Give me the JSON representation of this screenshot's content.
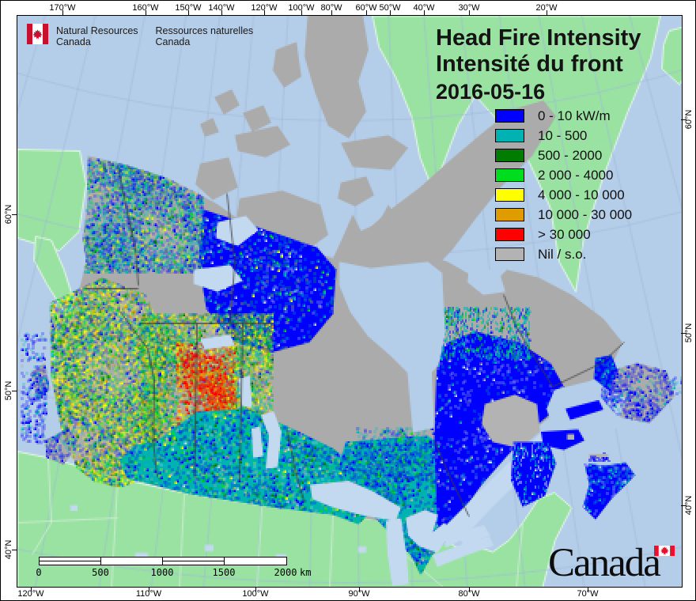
{
  "agency": {
    "flag_icon": "canadian-flag",
    "en": [
      "Natural Resources",
      "Canada"
    ],
    "fr": [
      "Ressources naturelles",
      "Canada"
    ]
  },
  "title": {
    "line1": "Head Fire Intensity",
    "line2": "Intensité du front",
    "date": "2016-05-16"
  },
  "legend": {
    "items": [
      {
        "label": "0 - 10 kW/m",
        "color": "#0000ff"
      },
      {
        "label": "10 - 500",
        "color": "#00b2b2"
      },
      {
        "label": "500 - 2000",
        "color": "#007d00"
      },
      {
        "label": "2 000 - 4000",
        "color": "#00dd1e"
      },
      {
        "label": "4 000 - 10 000",
        "color": "#ffff00"
      },
      {
        "label": "10 000 - 30 000",
        "color": "#e09b00"
      },
      {
        "label": "> 30 000",
        "color": "#ff0000"
      },
      {
        "label": "Nil / s.o.",
        "color": "#b3b3b3"
      }
    ]
  },
  "axes": {
    "top": [
      "170°W",
      "160°W",
      "150°W",
      "140°W",
      "120°W",
      "100°W",
      "80°W",
      "60°W",
      "50°W",
      "40°W",
      "30°W",
      "20°W"
    ],
    "bottom": [
      "120°W",
      "110°W",
      "100°W",
      "90°W",
      "80°W",
      "70°W"
    ],
    "left": [
      "60°N",
      "50°N",
      "40°N"
    ],
    "right": [
      "60°N",
      "50°N",
      "40°N"
    ]
  },
  "scale_bar": {
    "labels": [
      "0",
      "500",
      "1000",
      "1500",
      "2000"
    ],
    "unit": "km"
  },
  "wordmark": {
    "text": "Canada",
    "flag_icon": "canadian-flag"
  },
  "map_colors": {
    "ocean": "#b4cde8",
    "lake": "#c2d9f0",
    "land_other": "#9ae2a2",
    "land_nil": "#ababab",
    "graticule": "#9db9da",
    "border": "#3c3c3c",
    "border_us": "#cdedd2",
    "coast_highlight": "#e6f9e8"
  }
}
